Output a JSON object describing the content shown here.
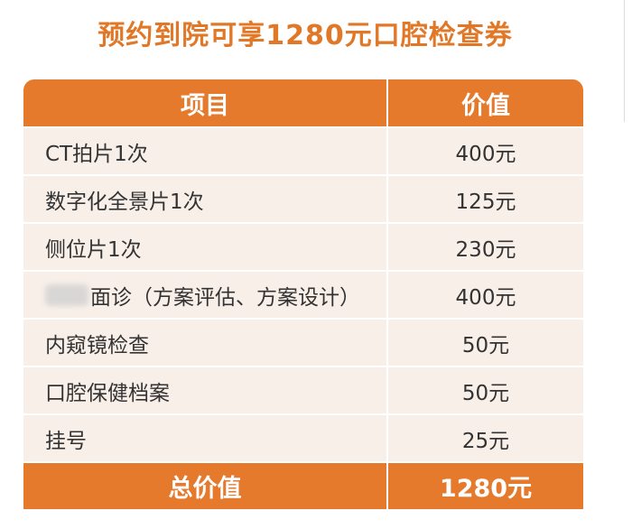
{
  "title": "预约到院可享1280元口腔检查券",
  "table": {
    "headers": [
      "项目",
      "价值"
    ],
    "rows": [
      {
        "item": "CT拍片1次",
        "value": "400元"
      },
      {
        "item": "数字化全景片1次",
        "value": "125元"
      },
      {
        "item": "侧位片1次",
        "value": "230元"
      },
      {
        "item": "面诊（方案评估、方案设计）",
        "value": "400元"
      },
      {
        "item": "内窥镜检查",
        "value": "50元"
      },
      {
        "item": "口腔保健档案",
        "value": "50元"
      },
      {
        "item": "挂号",
        "value": "25元"
      }
    ],
    "footer": {
      "label": "总价值",
      "value": "1280元"
    }
  },
  "colors": {
    "accent": "#e57a2c",
    "title": "#e07828",
    "row_bg": "#f8efe9",
    "text": "#333333"
  }
}
